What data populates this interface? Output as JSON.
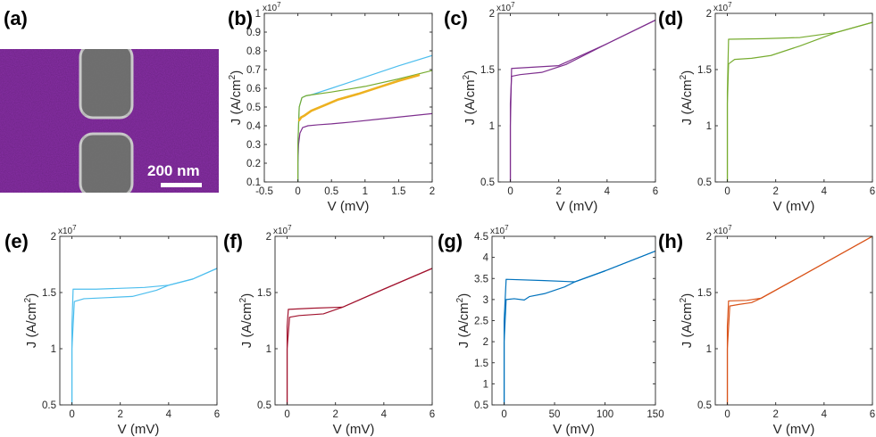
{
  "sem_panel": {
    "label": "(a)",
    "scalebar_text": "200 nm",
    "colors": {
      "film": "#8a2fa8",
      "electrode": "#6f6f6f",
      "rim": "#c9c9c9"
    }
  },
  "chart_data": [
    {
      "label": "(b)",
      "type": "line",
      "xlabel": "V (mV)",
      "ylabel": "J (A/cm2)",
      "xlim": [
        -0.5,
        2
      ],
      "ylim": [
        0.1,
        1
      ],
      "xticks": [
        "-0.5",
        "0",
        "0.5",
        "1",
        "1.5",
        "2"
      ],
      "yticks": [
        "0.1",
        "0.2",
        "0.3",
        "0.4",
        "0.5",
        "0.6",
        "0.7",
        "0.8",
        "0.9",
        "1"
      ],
      "multiplier": "x10^7",
      "series": [
        {
          "color": "#7e2f8e",
          "width": 1.2,
          "x": [
            0,
            0,
            0.01,
            0.03,
            0.07,
            0.15,
            0.3,
            0.5,
            0.8,
            1.2,
            1.6,
            2.0
          ],
          "y": [
            0.1,
            0.2,
            0.3,
            0.36,
            0.39,
            0.4,
            0.405,
            0.41,
            0.42,
            0.435,
            0.45,
            0.465
          ]
        },
        {
          "color": "#4dbeee",
          "width": 1.2,
          "x": [
            0,
            0,
            0.02,
            0.06,
            0.12,
            0.2,
            0.5,
            1.0,
            1.5,
            2.0
          ],
          "y": [
            0.1,
            0.3,
            0.5,
            0.55,
            0.56,
            0.565,
            0.6,
            0.66,
            0.72,
            0.775
          ]
        },
        {
          "color": "#77ac30",
          "width": 1.2,
          "x": [
            0,
            0,
            0.02,
            0.06,
            0.12,
            0.2,
            0.5,
            1.0,
            1.5,
            2.0
          ],
          "y": [
            0.1,
            0.3,
            0.5,
            0.55,
            0.56,
            0.565,
            0.58,
            0.61,
            0.65,
            0.695
          ]
        },
        {
          "color": "#edb120",
          "width": 2.6,
          "x": [
            0.02,
            0.05,
            0.1,
            0.2,
            0.4,
            0.6,
            0.9,
            1.2,
            1.5,
            1.8
          ],
          "y": [
            0.43,
            0.445,
            0.455,
            0.48,
            0.51,
            0.54,
            0.57,
            0.605,
            0.64,
            0.67
          ]
        }
      ]
    },
    {
      "label": "(c)",
      "type": "line",
      "xlabel": "V (mV)",
      "ylabel": "J (A/cm2)",
      "xlim": [
        -0.5,
        6
      ],
      "ylim": [
        0.5,
        2
      ],
      "xticks": [
        "0",
        "2",
        "4",
        "6"
      ],
      "yticks": [
        "0.5",
        "1",
        "1.5",
        "2"
      ],
      "multiplier": "x10^7",
      "series": [
        {
          "color": "#7e2f8e",
          "width": 1.2,
          "x": [
            0,
            0,
            0.05,
            2.0,
            4.0,
            6.0
          ],
          "y": [
            0.5,
            1.0,
            1.51,
            1.535,
            1.73,
            1.94
          ]
        },
        {
          "color": "#7e2f8e",
          "width": 1.2,
          "x": [
            0,
            0,
            0.05,
            0.4,
            1.3,
            2.3,
            4.0,
            6.0
          ],
          "y": [
            0.5,
            1.2,
            1.44,
            1.455,
            1.475,
            1.545,
            1.73,
            1.94
          ]
        }
      ]
    },
    {
      "label": "(d)",
      "type": "line",
      "xlabel": "V (mV)",
      "ylabel": "J (A/cm2)",
      "xlim": [
        -0.5,
        6
      ],
      "ylim": [
        0.5,
        2
      ],
      "xticks": [
        "0",
        "2",
        "4",
        "6"
      ],
      "yticks": [
        "0.5",
        "1",
        "1.5",
        "2"
      ],
      "multiplier": "x10^7",
      "series": [
        {
          "color": "#77ac30",
          "width": 1.2,
          "x": [
            0,
            0,
            0.05,
            1.5,
            3.0,
            4.5,
            6.0
          ],
          "y": [
            0.5,
            1.3,
            1.77,
            1.775,
            1.785,
            1.83,
            1.92
          ]
        },
        {
          "color": "#77ac30",
          "width": 1.2,
          "x": [
            0,
            0,
            0.05,
            0.3,
            1.0,
            1.8,
            3.0,
            4.5,
            6.0
          ],
          "y": [
            0.5,
            1.2,
            1.55,
            1.59,
            1.6,
            1.625,
            1.71,
            1.83,
            1.92
          ]
        }
      ]
    },
    {
      "label": "(e)",
      "type": "line",
      "xlabel": "V (mV)",
      "ylabel": "J (A/cm2)",
      "xlim": [
        -0.5,
        6
      ],
      "ylim": [
        0.5,
        2
      ],
      "xticks": [
        "0",
        "2",
        "4",
        "6"
      ],
      "yticks": [
        "0.5",
        "1",
        "1.5",
        "2"
      ],
      "multiplier": "x10^7",
      "series": [
        {
          "color": "#4dbeee",
          "width": 1.2,
          "x": [
            0,
            0,
            0.05,
            1.0,
            3.0,
            4.0,
            5.0,
            6.0
          ],
          "y": [
            0.5,
            1.2,
            1.53,
            1.53,
            1.545,
            1.565,
            1.62,
            1.715
          ]
        },
        {
          "color": "#4dbeee",
          "width": 1.2,
          "x": [
            0,
            0,
            0.1,
            0.5,
            1.5,
            2.5,
            3.5,
            4.0,
            5.0,
            6.0
          ],
          "y": [
            0.5,
            1.0,
            1.42,
            1.445,
            1.455,
            1.465,
            1.52,
            1.565,
            1.62,
            1.715
          ]
        }
      ]
    },
    {
      "label": "(f)",
      "type": "line",
      "xlabel": "V (mV)",
      "ylabel": "J (A/cm2)",
      "xlim": [
        -0.5,
        6
      ],
      "ylim": [
        0.5,
        2
      ],
      "xticks": [
        "0",
        "2",
        "4",
        "6"
      ],
      "yticks": [
        "0.5",
        "1",
        "1.5",
        "2"
      ],
      "multiplier": "x10^7",
      "series": [
        {
          "color": "#a2142f",
          "width": 1.2,
          "x": [
            0,
            0,
            0.05,
            1.0,
            2.3,
            4.0,
            6.0
          ],
          "y": [
            0.5,
            1.2,
            1.35,
            1.36,
            1.37,
            1.53,
            1.715
          ]
        },
        {
          "color": "#a2142f",
          "width": 1.2,
          "x": [
            0,
            0,
            0.1,
            0.5,
            1.5,
            2.3,
            4.0,
            6.0
          ],
          "y": [
            0.5,
            1.0,
            1.28,
            1.295,
            1.31,
            1.37,
            1.53,
            1.715
          ]
        }
      ]
    },
    {
      "label": "(g)",
      "type": "line",
      "xlabel": "V (mV)",
      "ylabel": "J (A/cm2)",
      "xlim": [
        -12,
        150
      ],
      "ylim": [
        0.5,
        4.5
      ],
      "xticks": [
        "0",
        "50",
        "100",
        "150"
      ],
      "yticks": [
        "0.5",
        "1",
        "1.5",
        "2",
        "2.5",
        "3",
        "3.5",
        "4",
        "4.5"
      ],
      "multiplier": "x10^7",
      "series": [
        {
          "color": "#0072bd",
          "width": 1.2,
          "x": [
            0,
            0,
            2,
            40,
            70,
            100,
            150
          ],
          "y": [
            0.5,
            2.5,
            3.48,
            3.45,
            3.42,
            3.68,
            4.15
          ]
        },
        {
          "color": "#0072bd",
          "width": 1.2,
          "x": [
            0,
            0,
            2,
            10,
            20,
            25,
            40,
            60,
            70,
            100,
            150
          ],
          "y": [
            0.5,
            2.0,
            3.0,
            3.02,
            2.99,
            3.07,
            3.14,
            3.3,
            3.42,
            3.68,
            4.15
          ]
        }
      ]
    },
    {
      "label": "(h)",
      "type": "line",
      "xlabel": "V (mV)",
      "ylabel": "J (A/cm2)",
      "xlim": [
        -0.5,
        6
      ],
      "ylim": [
        0.5,
        2
      ],
      "xticks": [
        "0",
        "2",
        "4",
        "6"
      ],
      "yticks": [
        "0.5",
        "1",
        "1.5",
        "2"
      ],
      "multiplier": "x10^7",
      "series": [
        {
          "color": "#d95319",
          "width": 1.2,
          "x": [
            0,
            0,
            0.05,
            0.8,
            1.4,
            3.0,
            6.0
          ],
          "y": [
            0.5,
            1.2,
            1.425,
            1.43,
            1.45,
            1.64,
            2.0
          ]
        },
        {
          "color": "#d95319",
          "width": 1.2,
          "x": [
            0,
            0,
            0.1,
            0.5,
            1.0,
            1.4,
            3.0,
            6.0
          ],
          "y": [
            0.5,
            1.0,
            1.38,
            1.395,
            1.41,
            1.45,
            1.64,
            2.0
          ]
        }
      ]
    }
  ]
}
